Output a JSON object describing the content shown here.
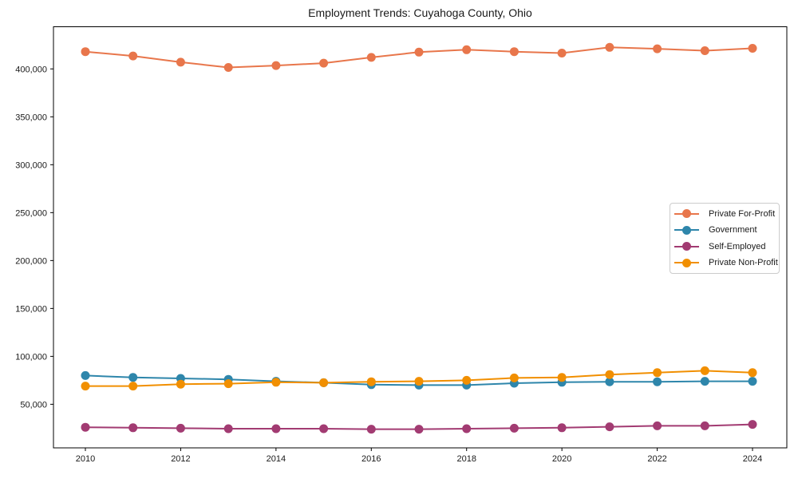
{
  "chart_data": {
    "type": "line",
    "title": "Employment Trends: Cuyahoga County, Ohio",
    "x": [
      2010,
      2011,
      2012,
      2013,
      2014,
      2015,
      2016,
      2017,
      2018,
      2019,
      2020,
      2021,
      2022,
      2023,
      2024
    ],
    "series": [
      {
        "name": "Private For-Profit",
        "color": "#E8764B",
        "values": [
          418000,
          413500,
          407000,
          401500,
          403500,
          406000,
          412000,
          417500,
          420000,
          418000,
          416500,
          422500,
          421000,
          419000,
          421500
        ]
      },
      {
        "name": "Government",
        "color": "#2E86AB",
        "values": [
          80000,
          78000,
          77000,
          76000,
          74000,
          72500,
          70500,
          70000,
          70000,
          72000,
          73000,
          73500,
          73500,
          74000,
          74000
        ]
      },
      {
        "name": "Self-Employed",
        "color": "#A23B72",
        "values": [
          26000,
          25500,
          25000,
          24500,
          24500,
          24500,
          24000,
          24000,
          24500,
          25000,
          25500,
          26500,
          27500,
          27500,
          29000
        ]
      },
      {
        "name": "Private Non-Profit",
        "color": "#F18F01",
        "values": [
          69000,
          69000,
          71000,
          71500,
          73000,
          72500,
          73500,
          74000,
          75000,
          77500,
          78000,
          81000,
          83000,
          85000,
          83000
        ]
      }
    ],
    "xticks": [
      2010,
      2012,
      2014,
      2016,
      2018,
      2020,
      2022,
      2024
    ],
    "yticks": [
      50000,
      100000,
      150000,
      200000,
      250000,
      300000,
      350000,
      400000
    ],
    "ytick_labels": [
      "50,000",
      "100,000",
      "150,000",
      "200,000",
      "250,000",
      "300,000",
      "350,000",
      "400,000"
    ],
    "xlim": [
      2009.33,
      2024.72
    ],
    "ylim": [
      4500,
      444000
    ],
    "grid": false,
    "legend_position": "center-right",
    "axis_color": "#000000",
    "text_color": "#1a1a1a"
  }
}
